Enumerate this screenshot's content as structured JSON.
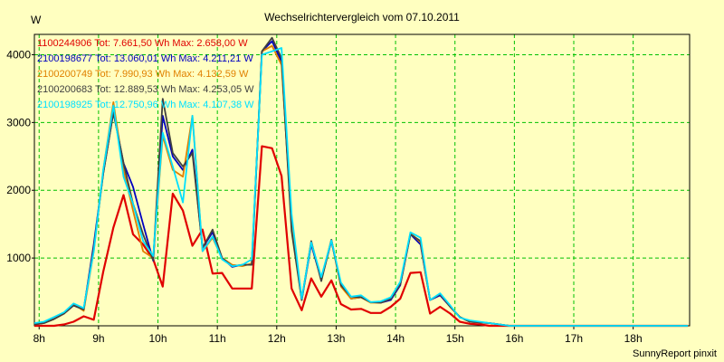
{
  "chart_data": {
    "type": "line",
    "title": "Wechselrichtervergleich vom 07.10.2011",
    "ylabel": "W",
    "xlabel": "",
    "credit": "SunnyReport pinxit",
    "xlim": [
      7.92,
      18.95
    ],
    "ylim": [
      0,
      4300
    ],
    "yticks": [
      1000,
      2000,
      3000,
      4000
    ],
    "xticks": [
      8,
      9,
      10,
      11,
      12,
      13,
      14,
      15,
      16,
      17,
      18
    ],
    "xtick_labels": [
      "8h",
      "9h",
      "10h",
      "11h",
      "12h",
      "13h",
      "14h",
      "15h",
      "16h",
      "17h",
      "18h"
    ],
    "grid": true,
    "background": "#ffffc0",
    "grid_color": "#00c000",
    "legend_position": "top-left",
    "x": [
      7.92,
      8.08,
      8.25,
      8.42,
      8.58,
      8.75,
      8.92,
      9.08,
      9.25,
      9.42,
      9.58,
      9.75,
      9.92,
      10.08,
      10.25,
      10.42,
      10.58,
      10.75,
      10.92,
      11.08,
      11.25,
      11.42,
      11.58,
      11.75,
      11.92,
      12.08,
      12.25,
      12.42,
      12.58,
      12.75,
      12.92,
      13.08,
      13.25,
      13.42,
      13.58,
      13.75,
      13.92,
      14.08,
      14.25,
      14.42,
      14.58,
      14.75,
      14.92,
      15.08,
      15.25,
      15.42,
      15.58,
      15.75,
      15.92,
      16.08,
      16.25,
      16.42,
      16.58,
      16.75,
      16.92,
      17.08,
      17.25,
      17.42,
      17.58,
      17.75,
      17.92,
      18.08,
      18.25,
      18.42,
      18.58,
      18.75,
      18.92
    ],
    "series": [
      {
        "name": "1100244906 Tot: 7.661,50 Wh Max: 2.658,00 W",
        "color": "#e00000",
        "values": [
          0,
          0,
          0,
          20,
          60,
          140,
          90,
          800,
          1450,
          1930,
          1350,
          1200,
          980,
          580,
          1950,
          1700,
          1180,
          1420,
          770,
          780,
          550,
          550,
          550,
          2650,
          2620,
          2210,
          550,
          230,
          700,
          430,
          670,
          320,
          240,
          250,
          190,
          190,
          280,
          400,
          780,
          790,
          180,
          280,
          180,
          60,
          30,
          20,
          0,
          0,
          0,
          0,
          0,
          0,
          0,
          0,
          0,
          0,
          0,
          0,
          0,
          0,
          0,
          0,
          0,
          0,
          0,
          0,
          0
        ]
      },
      {
        "name": "2100198677 Tot: 13.060,01 Wh Max: 4.211,21 W",
        "color": "#0000c0",
        "values": [
          20,
          40,
          100,
          180,
          300,
          240,
          1200,
          2250,
          3150,
          2400,
          2050,
          1500,
          960,
          3100,
          2500,
          2300,
          2600,
          1150,
          1380,
          1000,
          870,
          900,
          900,
          4050,
          4200,
          3900,
          1500,
          380,
          1200,
          680,
          1250,
          600,
          400,
          420,
          350,
          340,
          380,
          600,
          1350,
          1200,
          380,
          450,
          280,
          130,
          60,
          50,
          40,
          20,
          0,
          0,
          0,
          0,
          0,
          0,
          0,
          0,
          0,
          0,
          0,
          0,
          0,
          0,
          0,
          0,
          0,
          0,
          0
        ]
      },
      {
        "name": "2100200749 Tot: 7.990,93 Wh Max: 4.132,59 W",
        "color": "#e08000",
        "values": [
          20,
          40,
          100,
          180,
          320,
          220,
          1100,
          2300,
          3300,
          2300,
          1700,
          1100,
          1000,
          2800,
          2300,
          2200,
          3100,
          1100,
          1300,
          1000,
          900,
          880,
          920,
          4050,
          4130,
          3850,
          1550,
          400,
          1230,
          700,
          1270,
          580,
          400,
          420,
          340,
          340,
          400,
          620,
          1370,
          1230,
          380,
          470,
          280,
          130,
          60,
          50,
          40,
          20,
          0,
          0,
          0,
          0,
          0,
          0,
          0,
          0,
          0,
          0,
          0,
          0,
          0,
          0,
          0,
          0,
          0,
          0,
          0
        ]
      },
      {
        "name": "2100200683 Tot: 12.889,53 Wh Max: 4.253,05 W",
        "color": "#404040",
        "values": [
          20,
          40,
          100,
          180,
          300,
          240,
          1150,
          2250,
          3150,
          2400,
          1800,
          1350,
          970,
          3350,
          2550,
          2350,
          2550,
          1150,
          1420,
          1000,
          880,
          900,
          900,
          4050,
          4250,
          3950,
          1400,
          380,
          1250,
          660,
          1270,
          600,
          430,
          420,
          350,
          340,
          400,
          620,
          1350,
          1250,
          380,
          470,
          280,
          130,
          60,
          50,
          40,
          20,
          0,
          0,
          0,
          0,
          0,
          0,
          0,
          0,
          0,
          0,
          0,
          0,
          0,
          0,
          0,
          0,
          0,
          0,
          0
        ]
      },
      {
        "name": "2100198925 Tot: 12.750,96 Wh Max: 4.107,38 W",
        "color": "#00e0ff",
        "values": [
          40,
          60,
          130,
          200,
          330,
          260,
          1100,
          2300,
          3250,
          2200,
          1800,
          1250,
          1030,
          2850,
          2350,
          1820,
          3100,
          1100,
          1320,
          980,
          880,
          900,
          980,
          4000,
          4050,
          4100,
          1650,
          400,
          1230,
          720,
          1260,
          640,
          430,
          450,
          350,
          360,
          420,
          650,
          1380,
          1300,
          380,
          480,
          300,
          120,
          80,
          60,
          40,
          20,
          0,
          0,
          0,
          0,
          0,
          0,
          0,
          0,
          0,
          0,
          0,
          0,
          0,
          0,
          0,
          0,
          0,
          0,
          0
        ]
      }
    ]
  }
}
